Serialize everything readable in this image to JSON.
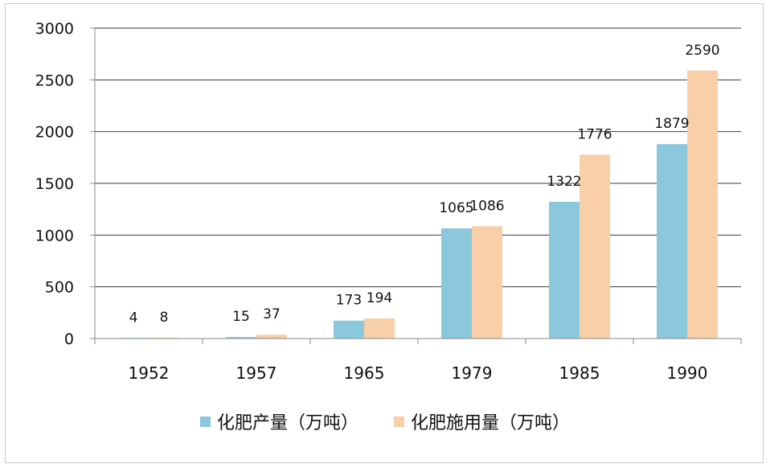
{
  "chart_data": {
    "type": "bar",
    "categories": [
      "1952",
      "1957",
      "1965",
      "1979",
      "1985",
      "1990"
    ],
    "series": [
      {
        "name": "化肥产量（万吨）",
        "values": [
          4,
          15,
          173,
          1065,
          1322,
          1879
        ],
        "color": "#8cc8dc"
      },
      {
        "name": "化肥施用量（万吨）",
        "values": [
          8,
          37,
          194,
          1086,
          1776,
          2590
        ],
        "color": "#f8cfa6"
      }
    ],
    "ylim": [
      0,
      3000
    ],
    "yticks": [
      0,
      500,
      1000,
      1500,
      2000,
      2500,
      3000
    ],
    "grid": true,
    "legend": "bottom",
    "title": "",
    "xlabel": "",
    "ylabel": ""
  }
}
